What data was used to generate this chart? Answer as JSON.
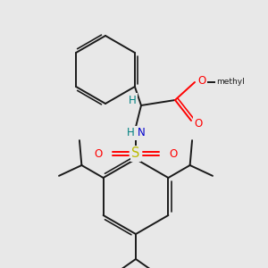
{
  "background_color": "#e8e8e8",
  "fig_size": [
    3.0,
    3.0
  ],
  "dpi": 100,
  "bond_color": "#1a1a1a",
  "bond_width": 1.4,
  "atom_colors": {
    "O": "#ff0000",
    "N": "#0000cc",
    "S": "#bbbb00",
    "H": "#008080",
    "C": "#1a1a1a"
  },
  "font_size": 8.5
}
